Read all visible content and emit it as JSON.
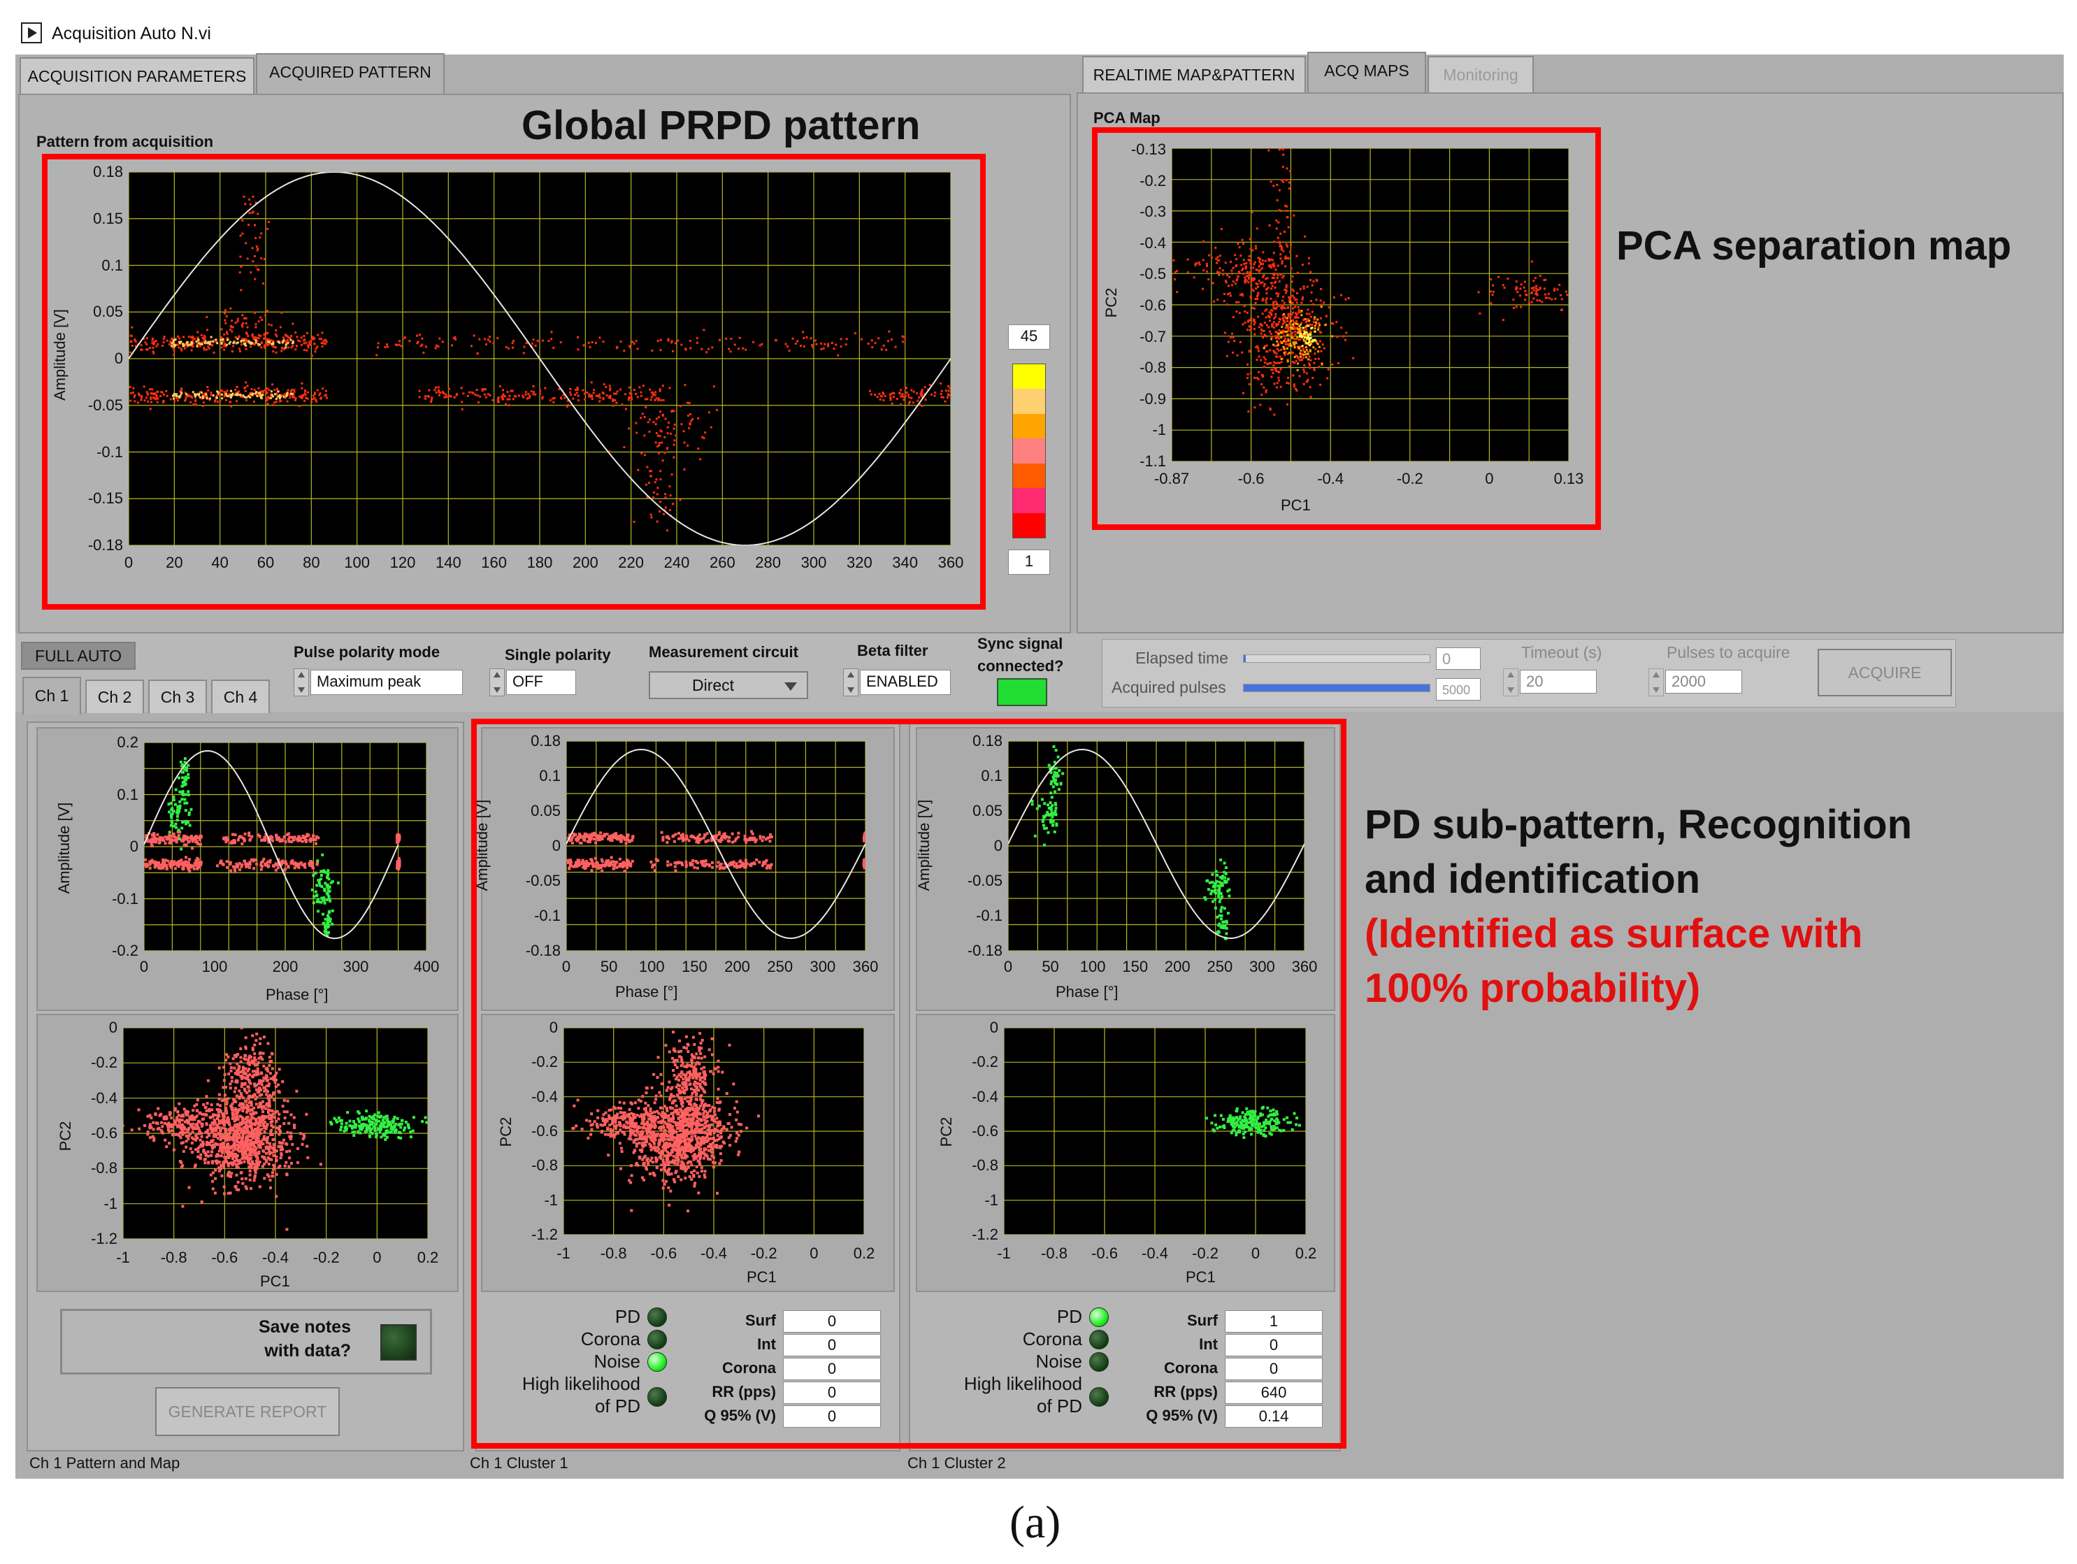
{
  "window": {
    "title": "Acquisition Auto N.vi"
  },
  "tabs_left": [
    {
      "label": "ACQUISITION PARAMETERS"
    },
    {
      "label": "ACQUIRED PATTERN"
    }
  ],
  "tabs_right": [
    {
      "label": "REALTIME MAP&PATTERN"
    },
    {
      "label": "ACQ MAPS"
    },
    {
      "label": "Monitoring"
    }
  ],
  "global_pattern": {
    "caption": "Pattern from acquisition",
    "annotation": "Global PRPD pattern",
    "ylabel": "Amplitude [V]",
    "xticks": [
      "0",
      "20",
      "40",
      "60",
      "80",
      "100",
      "120",
      "140",
      "160",
      "180",
      "200",
      "220",
      "240",
      "260",
      "280",
      "300",
      "320",
      "340",
      "360"
    ],
    "yticks": [
      "0.18",
      "0.15",
      "0.1",
      "0.05",
      "0",
      "-0.05",
      "-0.1",
      "-0.15",
      "-0.18"
    ],
    "colorbar_max": "45",
    "colorbar_min": "1",
    "colorbar_colors": [
      "#ffff00",
      "#ffd070",
      "#ffa500",
      "#ff8080",
      "#ff5a00",
      "#ff2a70",
      "#ff0000"
    ]
  },
  "pca_map": {
    "caption": "PCA Map",
    "annotation": "PCA separation map",
    "xlabel": "PC1",
    "ylabel": "PC2",
    "xticks": [
      "-0.87",
      "-0.6",
      "-0.4",
      "-0.2",
      "0",
      "0.13"
    ],
    "yticks": [
      "-0.13",
      "-0.2",
      "-0.3",
      "-0.4",
      "-0.5",
      "-0.6",
      "-0.7",
      "-0.8",
      "-0.9",
      "-1",
      "-1.1"
    ]
  },
  "controls": {
    "full_auto": "FULL AUTO",
    "pulse_polarity_label": "Pulse polarity mode",
    "pulse_polarity_value": "Maximum peak",
    "single_polarity_label": "Single polarity",
    "single_polarity_value": "OFF",
    "measurement_circuit_label": "Measurement circuit",
    "measurement_circuit_value": "Direct",
    "beta_filter_label": "Beta filter",
    "beta_filter_value": "ENABLED",
    "sync_label_1": "Sync signal",
    "sync_label_2": "connected?"
  },
  "acquisition": {
    "elapsed_label": "Elapsed time",
    "elapsed_value": "0",
    "acquired_label": "Acquired pulses",
    "acquired_value": "5000",
    "acquired_fraction": 1.0,
    "elapsed_fraction": 0.01,
    "timeout_label": "Timeout (s)",
    "timeout_value": "20",
    "pulses_label": "Pulses to acquire",
    "pulses_value": "2000",
    "acquire_button": "ACQUIRE"
  },
  "channel_tabs": [
    {
      "label": "Ch 1"
    },
    {
      "label": "Ch 2"
    },
    {
      "label": "Ch 3"
    },
    {
      "label": "Ch 4"
    }
  ],
  "subplots": {
    "phase_xlabel": "Phase [°]",
    "amp_ylabel": "Amplitude [V]",
    "pc1_label": "PC1",
    "pc2_label": "PC2",
    "ch1_phase_xticks": [
      "0",
      "100",
      "200",
      "300",
      "400"
    ],
    "ch1_amp_yticks": [
      "0.2",
      "0.1",
      "0",
      "-0.1",
      "-0.2"
    ],
    "cl_phase_xticks": [
      "0",
      "50",
      "100",
      "150",
      "200",
      "250",
      "300",
      "360"
    ],
    "cl_amp_yticks": [
      "0.18",
      "0.1",
      "0.05",
      "0",
      "-0.05",
      "-0.1",
      "-0.18"
    ],
    "pca_xticks": [
      "-1",
      "-0.8",
      "-0.6",
      "-0.4",
      "-0.2",
      "0",
      "0.2"
    ],
    "pca_yticks": [
      "0",
      "-0.2",
      "-0.4",
      "-0.6",
      "-0.8",
      "-1",
      "-1.2"
    ]
  },
  "save_notes": {
    "line1": "Save notes",
    "line2": "with data?"
  },
  "generate_report": "GENERATE REPORT",
  "indicators": {
    "pd": "PD",
    "corona": "Corona",
    "noise": "Noise",
    "high_likelihood_1": "High likelihood",
    "high_likelihood_2": "of PD",
    "surf": "Surf",
    "int": "Int",
    "corona_num": "Corona",
    "rr": "RR (pps)",
    "q95": "Q 95% (V)"
  },
  "cluster1": {
    "pd_led": false,
    "corona_led": false,
    "noise_led": true,
    "hl_led": false,
    "surf": "0",
    "int": "0",
    "corona": "0",
    "rr": "0",
    "q95": "0"
  },
  "cluster2": {
    "pd_led": true,
    "corona_led": false,
    "noise_led": false,
    "hl_led": false,
    "surf": "1",
    "int": "0",
    "corona": "0",
    "rr": "640",
    "q95": "0.14"
  },
  "annotation_pd": {
    "line1": "PD sub-pattern, Recognition",
    "line2": "and identification",
    "line3": "(Identified as surface with",
    "line4": "100% probability)"
  },
  "status": {
    "ch1": "Ch 1 Pattern and Map",
    "cluster1": "Ch 1 Cluster 1",
    "cluster2": "Ch 1 Cluster 2"
  },
  "figure_caption": "(a)",
  "colors": {
    "pd_red": "#ff6060",
    "pd_green": "#33ee44",
    "grid": "#b7b720",
    "highlight": "#ff0000"
  }
}
